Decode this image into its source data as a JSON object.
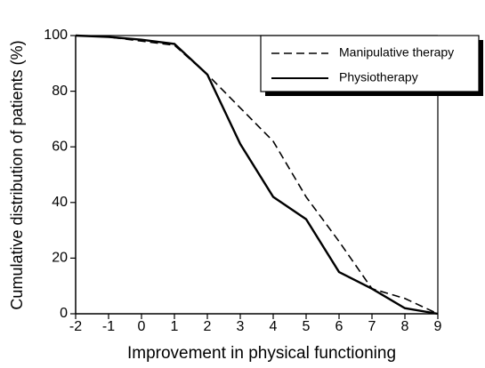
{
  "chart_data": {
    "type": "line",
    "x_label": "Improvement in physical functioning",
    "y_label": "Cumulative distribution of patients (%)",
    "x": [
      -2,
      -1,
      0,
      1,
      2,
      3,
      4,
      5,
      6,
      7,
      8,
      9
    ],
    "series": [
      {
        "name": "Manipulative therapy",
        "color": "#000000",
        "line_style": "dashed",
        "values": [
          100,
          99.5,
          98,
          96.5,
          86,
          74,
          62,
          42,
          26,
          9,
          5.5,
          0
        ]
      },
      {
        "name": "Physiotherapy",
        "color": "#000000",
        "line_style": "solid",
        "values": [
          100,
          99.5,
          98.5,
          97,
          86,
          61,
          42,
          34,
          15,
          9,
          2,
          0
        ]
      }
    ],
    "xlim": [
      -2,
      9
    ],
    "xticks": [
      -2,
      -1,
      0,
      1,
      2,
      3,
      4,
      5,
      6,
      7,
      8,
      9
    ],
    "ylim": [
      0,
      100
    ],
    "yticks": [
      0,
      20,
      40,
      60,
      80,
      100
    ],
    "legend": "upper right"
  }
}
